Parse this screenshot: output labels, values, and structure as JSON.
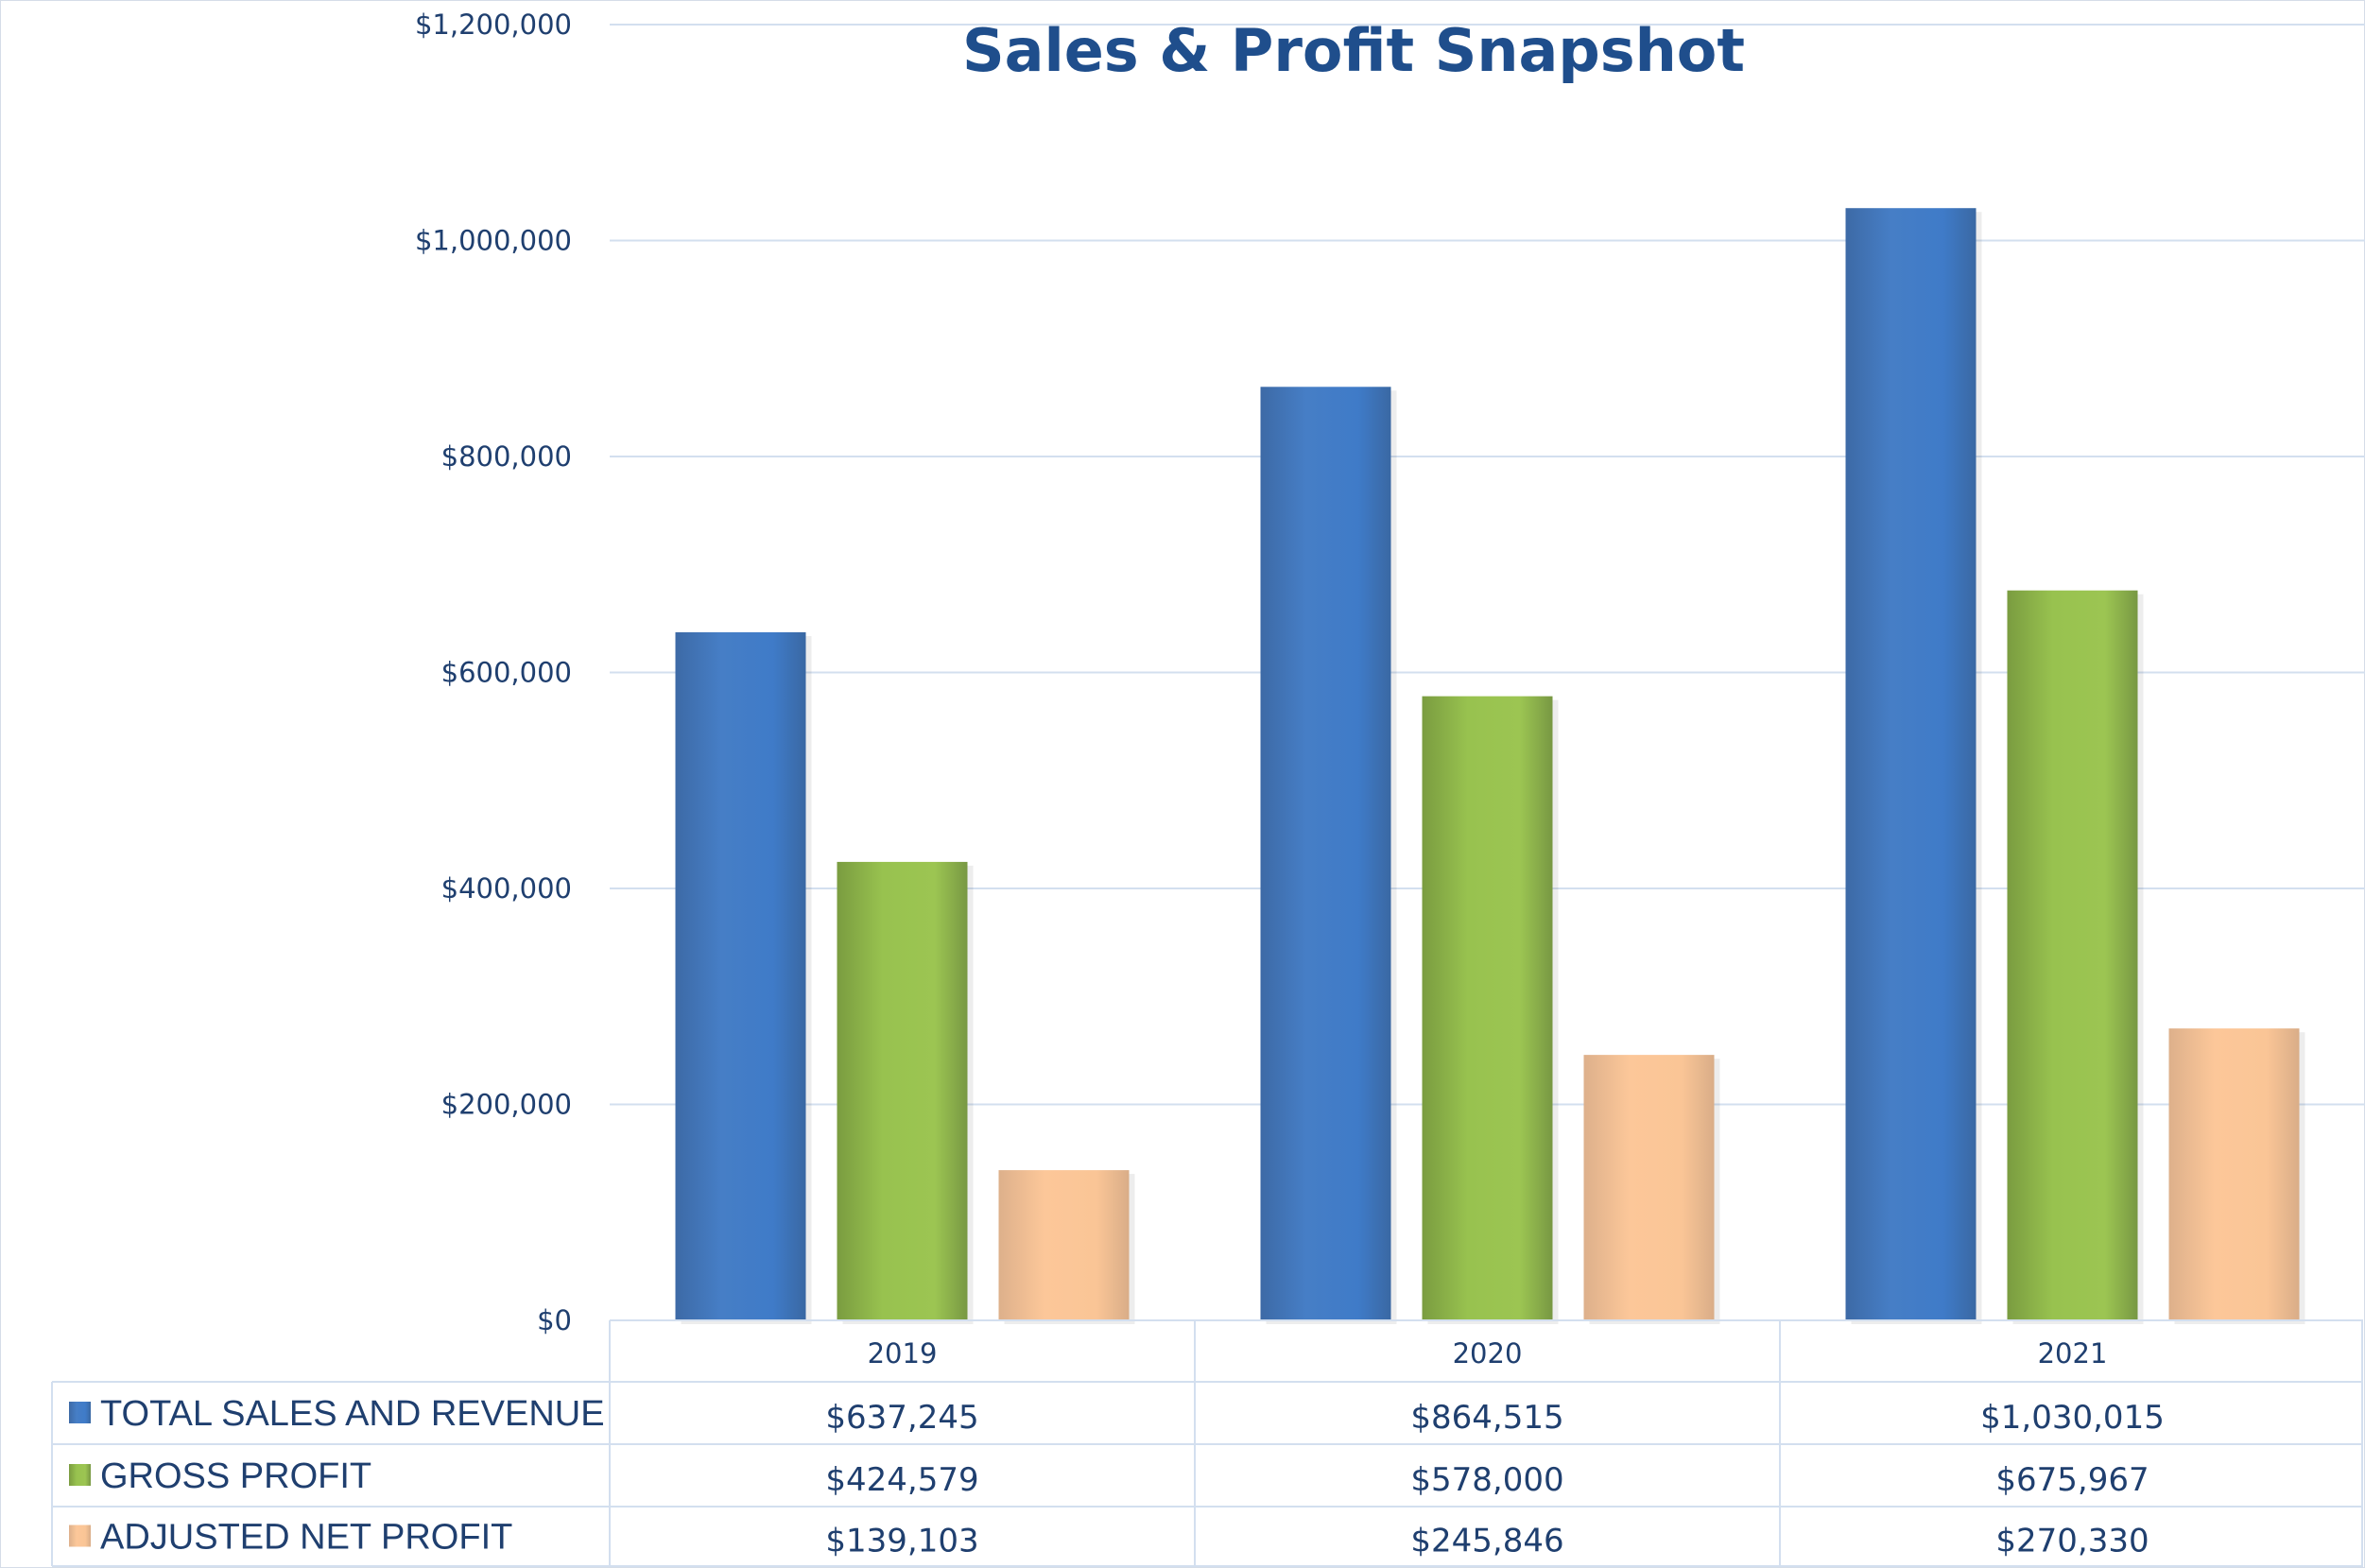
{
  "chart_data": {
    "type": "bar",
    "title": "Sales & Profit Snapshot",
    "categories": [
      "2019",
      "2020",
      "2021"
    ],
    "ylim": [
      0,
      1200000
    ],
    "yticks": [
      "$0",
      "$200,000",
      "$400,000",
      "$600,000",
      "$800,000",
      "$1,000,000",
      "$1,200,000"
    ],
    "ytick_values": [
      0,
      200000,
      400000,
      600000,
      800000,
      1000000,
      1200000
    ],
    "grid": true,
    "legend_placement": "data table below chart",
    "series": [
      {
        "name": "TOTAL SALES AND REVENUE",
        "color": "#4a7fc4",
        "values": [
          637245,
          864515,
          1030015
        ],
        "labels": [
          "$637,245",
          "$864,515",
          "$1,030,015"
        ]
      },
      {
        "name": "GROSS PROFIT",
        "color": "#96c04f",
        "values": [
          424579,
          578000,
          675967
        ],
        "labels": [
          "$424,579",
          "$578,000",
          "$675,967"
        ]
      },
      {
        "name": "ADJUSTED NET PROFIT",
        "color": "#f8c293",
        "values": [
          139103,
          245846,
          270330
        ],
        "labels": [
          "$139,103",
          "$245,846",
          "$270,330"
        ]
      }
    ]
  }
}
